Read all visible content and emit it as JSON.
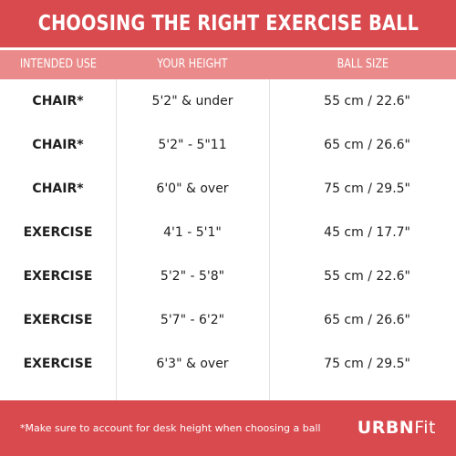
{
  "title": "CHOOSING THE RIGHT EXERCISE BALL",
  "columns": [
    "INTENDED USE",
    "YOUR HEIGHT",
    "BALL SIZE"
  ],
  "rows": [
    {
      "use": "CHAIR*",
      "height": "5'2\" & under",
      "size": "55 cm / 22.6\""
    },
    {
      "use": "CHAIR*",
      "height": "5'2\" - 5\"11",
      "size": "65 cm / 26.6\""
    },
    {
      "use": "CHAIR*",
      "height": "6'0\" & over",
      "size": "75 cm / 29.5\""
    },
    {
      "use": "EXERCISE",
      "height": "4'1 - 5'1\"",
      "size": "45 cm / 17.7\""
    },
    {
      "use": "EXERCISE",
      "height": "5'2\" - 5'8\"",
      "size": "55 cm / 22.6\""
    },
    {
      "use": "EXERCISE",
      "height": "5'7\" - 6'2\"",
      "size": "65 cm / 26.6\""
    },
    {
      "use": "EXERCISE",
      "height": "6'3\" & over",
      "size": "75 cm / 29.5\""
    }
  ],
  "footer": {
    "note": "*Make sure to account for desk height when choosing a ball",
    "brand_bold": "URBN",
    "brand_light": "Fit"
  },
  "colors": {
    "primary_red": "#d94a4f",
    "header_pink": "#ea8a8a",
    "text_dark": "#1e1e1e",
    "divider_gray": "#e3e3e3"
  }
}
